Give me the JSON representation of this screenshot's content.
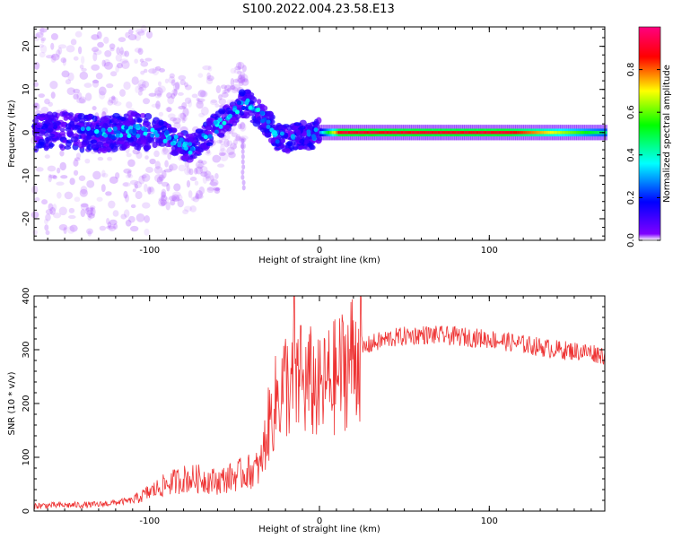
{
  "title": "S100.2022.004.23.58.E13",
  "chart_data": [
    {
      "type": "heatmap",
      "xlabel": "Height of straight line (km)",
      "ylabel": "Frequency (Hz)",
      "xlim": [
        -168,
        168
      ],
      "ylim": [
        -25,
        24.5
      ],
      "xticks": [
        -100,
        0,
        100
      ],
      "yticks": [
        -20,
        -10,
        0,
        10,
        20
      ],
      "grid": false,
      "colorbar": {
        "label": "Normalized spectral amplitude",
        "range": [
          0,
          1
        ],
        "ticks": [
          0.0,
          0.2,
          0.4,
          0.6,
          0.8
        ],
        "colormap": "rainbow",
        "colors": [
          "#ffffff",
          "#7f00ff",
          "#0000ff",
          "#00ffff",
          "#00ff00",
          "#ffff00",
          "#ff0000",
          "#ff0080"
        ]
      },
      "ridge": {
        "x": [
          -168,
          -150,
          -130,
          -110,
          -95,
          -85,
          -75,
          -65,
          -55,
          -48,
          -44,
          -40,
          -35,
          -30,
          -25,
          -20,
          -15,
          -10,
          -5,
          0,
          20,
          60,
          100,
          140,
          168
        ],
        "y": [
          0,
          0.5,
          -0.5,
          0.5,
          0,
          -2,
          -4,
          0,
          3,
          6,
          7,
          6,
          4,
          2,
          -1,
          -1.5,
          -1,
          -0.5,
          -1,
          0,
          0,
          0,
          0,
          0,
          0
        ]
      }
    },
    {
      "type": "line",
      "xlabel": "Height of straight line (km)",
      "ylabel": "SNR (10 * v/v)",
      "xlim": [
        -168,
        168
      ],
      "ylim": [
        0,
        400
      ],
      "xticks": [
        -100,
        0,
        100
      ],
      "yticks": [
        0,
        100,
        200,
        300,
        400
      ],
      "grid": false,
      "series": [
        {
          "color": "#ee3333",
          "envelope_x": [
            -168,
            -130,
            -110,
            -100,
            -90,
            -80,
            -70,
            -60,
            -50,
            -40,
            -35,
            -30,
            -25,
            -20,
            -15,
            -10,
            -5,
            0,
            5,
            10,
            15,
            20,
            25,
            30,
            40,
            50,
            60,
            80,
            100,
            120,
            140,
            160,
            168
          ],
          "envelope_y": [
            10,
            12,
            20,
            35,
            50,
            60,
            60,
            55,
            65,
            75,
            80,
            160,
            210,
            240,
            220,
            230,
            240,
            220,
            240,
            250,
            270,
            290,
            300,
            310,
            320,
            325,
            328,
            325,
            320,
            310,
            300,
            295,
            290
          ],
          "peaks": [
            {
              "x": -15,
              "y": 400
            },
            {
              "x": -11,
              "y": 345
            }
          ]
        }
      ]
    }
  ]
}
